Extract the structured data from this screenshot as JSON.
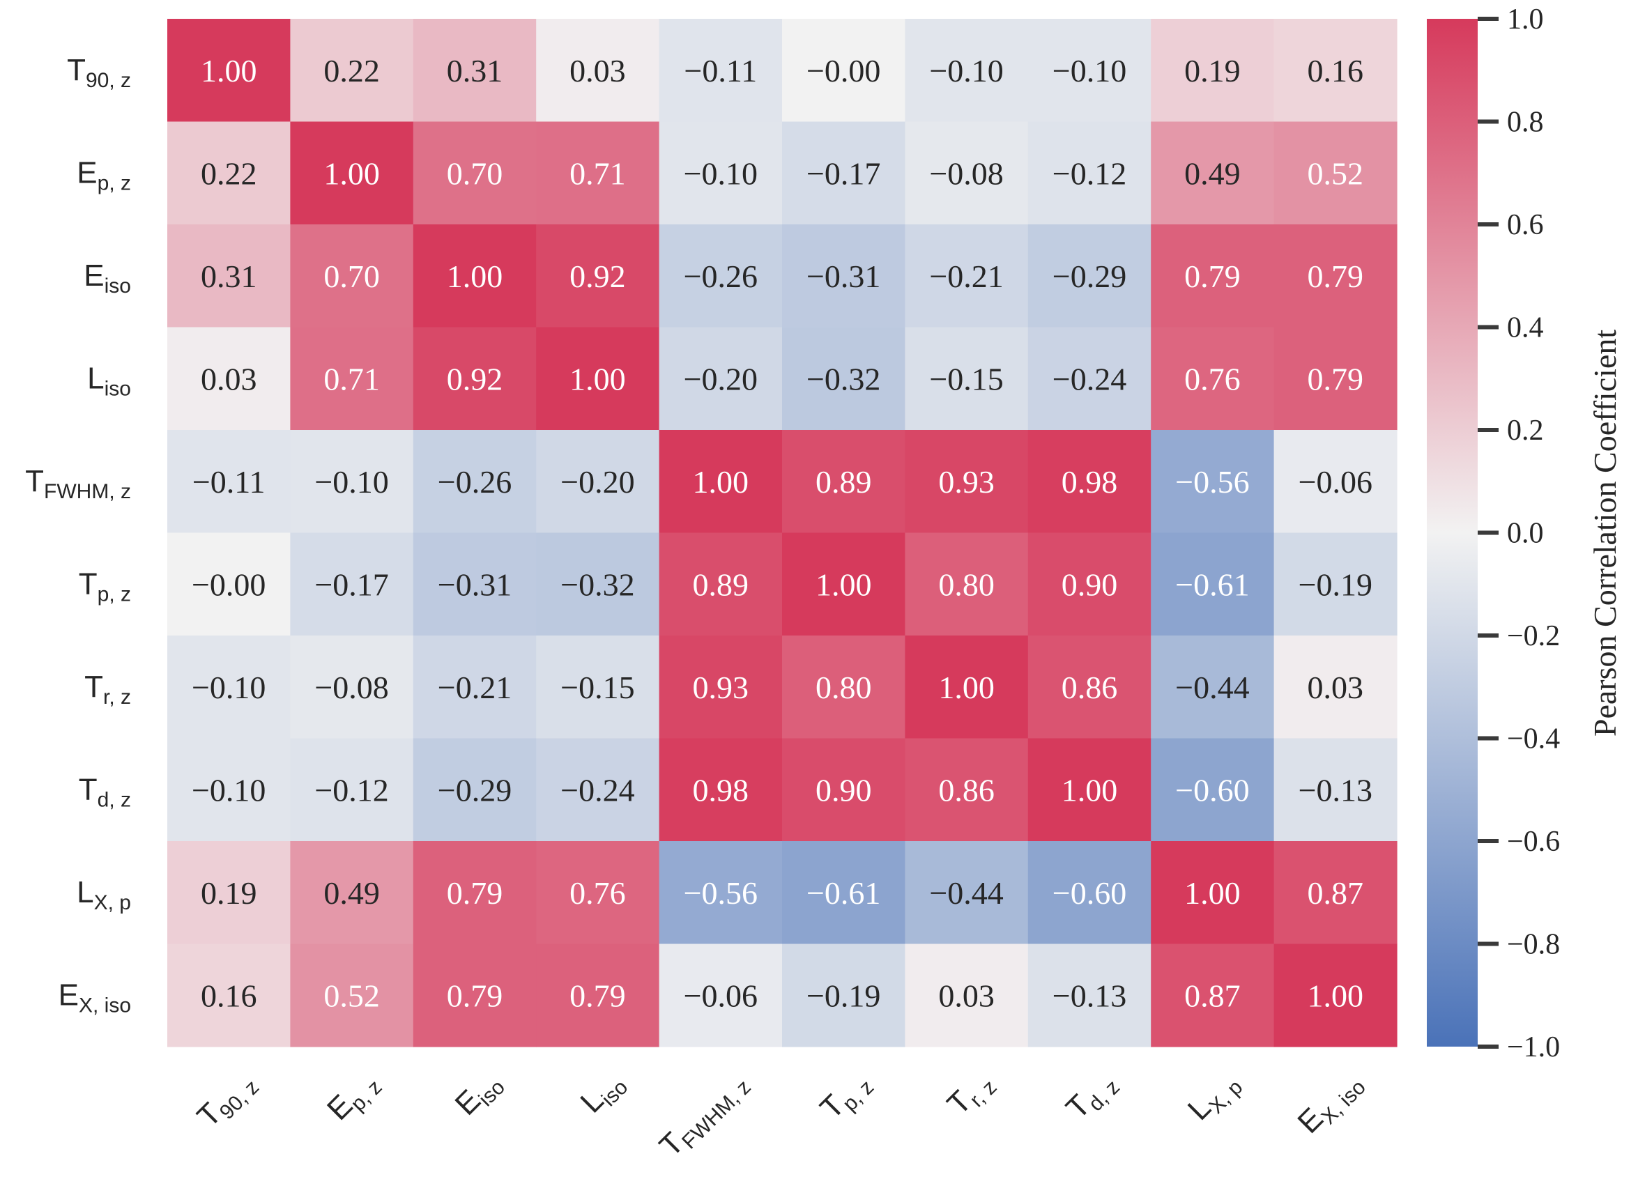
{
  "chart_data": {
    "type": "heatmap",
    "title": "",
    "row_labels": [
      {
        "base": "T",
        "sub": "90, z"
      },
      {
        "base": "E",
        "sub": "p, z"
      },
      {
        "base": "E",
        "sub": "iso"
      },
      {
        "base": "L",
        "sub": "iso"
      },
      {
        "base": "T",
        "sub": "FWHM, z"
      },
      {
        "base": "T",
        "sub": "p, z"
      },
      {
        "base": "T",
        "sub": "r, z"
      },
      {
        "base": "T",
        "sub": "d, z"
      },
      {
        "base": "L",
        "sub": "X, p"
      },
      {
        "base": "E",
        "sub": "X, iso"
      }
    ],
    "col_labels": [
      {
        "base": "T",
        "sub": "90, z"
      },
      {
        "base": "E",
        "sub": "p, z"
      },
      {
        "base": "E",
        "sub": "iso"
      },
      {
        "base": "L",
        "sub": "iso"
      },
      {
        "base": "T",
        "sub": "FWHM, z"
      },
      {
        "base": "T",
        "sub": "p, z"
      },
      {
        "base": "T",
        "sub": "r, z"
      },
      {
        "base": "T",
        "sub": "d, z"
      },
      {
        "base": "L",
        "sub": "X, p"
      },
      {
        "base": "E",
        "sub": "X, iso"
      }
    ],
    "values": [
      [
        1.0,
        0.22,
        0.31,
        0.03,
        -0.11,
        -0.0,
        -0.1,
        -0.1,
        0.19,
        0.16
      ],
      [
        0.22,
        1.0,
        0.7,
        0.71,
        -0.1,
        -0.17,
        -0.08,
        -0.12,
        0.49,
        0.52
      ],
      [
        0.31,
        0.7,
        1.0,
        0.92,
        -0.26,
        -0.31,
        -0.21,
        -0.29,
        0.79,
        0.79
      ],
      [
        0.03,
        0.71,
        0.92,
        1.0,
        -0.2,
        -0.32,
        -0.15,
        -0.24,
        0.76,
        0.79
      ],
      [
        -0.11,
        -0.1,
        -0.26,
        -0.2,
        1.0,
        0.89,
        0.93,
        0.98,
        -0.56,
        -0.06
      ],
      [
        -0.0,
        -0.17,
        -0.31,
        -0.32,
        0.89,
        1.0,
        0.8,
        0.9,
        -0.61,
        -0.19
      ],
      [
        -0.1,
        -0.08,
        -0.21,
        -0.15,
        0.93,
        0.8,
        1.0,
        0.86,
        -0.44,
        0.03
      ],
      [
        -0.1,
        -0.12,
        -0.29,
        -0.24,
        0.98,
        0.9,
        0.86,
        1.0,
        -0.6,
        -0.13
      ],
      [
        0.19,
        0.49,
        0.79,
        0.76,
        -0.56,
        -0.61,
        -0.44,
        -0.6,
        1.0,
        0.87
      ],
      [
        0.16,
        0.52,
        0.79,
        0.79,
        -0.06,
        -0.19,
        0.03,
        -0.13,
        0.87,
        1.0
      ]
    ],
    "value_labels": [
      [
        "1.00",
        "0.22",
        "0.31",
        "0.03",
        "−0.11",
        "−0.00",
        "−0.10",
        "−0.10",
        "0.19",
        "0.16"
      ],
      [
        "0.22",
        "1.00",
        "0.70",
        "0.71",
        "−0.10",
        "−0.17",
        "−0.08",
        "−0.12",
        "0.49",
        "0.52"
      ],
      [
        "0.31",
        "0.70",
        "1.00",
        "0.92",
        "−0.26",
        "−0.31",
        "−0.21",
        "−0.29",
        "0.79",
        "0.79"
      ],
      [
        "0.03",
        "0.71",
        "0.92",
        "1.00",
        "−0.20",
        "−0.32",
        "−0.15",
        "−0.24",
        "0.76",
        "0.79"
      ],
      [
        "−0.11",
        "−0.10",
        "−0.26",
        "−0.20",
        "1.00",
        "0.89",
        "0.93",
        "0.98",
        "−0.56",
        "−0.06"
      ],
      [
        "−0.00",
        "−0.17",
        "−0.31",
        "−0.32",
        "0.89",
        "1.00",
        "0.80",
        "0.90",
        "−0.61",
        "−0.19"
      ],
      [
        "−0.10",
        "−0.08",
        "−0.21",
        "−0.15",
        "0.93",
        "0.80",
        "1.00",
        "0.86",
        "−0.44",
        "0.03"
      ],
      [
        "−0.10",
        "−0.12",
        "−0.29",
        "−0.24",
        "0.98",
        "0.90",
        "0.86",
        "1.00",
        "−0.60",
        "−0.13"
      ],
      [
        "0.19",
        "0.49",
        "0.79",
        "0.76",
        "−0.56",
        "−0.61",
        "−0.44",
        "−0.60",
        "1.00",
        "0.87"
      ],
      [
        "0.16",
        "0.52",
        "0.79",
        "0.79",
        "−0.06",
        "−0.19",
        "0.03",
        "−0.13",
        "0.87",
        "1.00"
      ]
    ],
    "colorbar": {
      "label": "Pearson Correlation Coefficient",
      "range": [
        -1.0,
        1.0
      ],
      "ticks": [
        1.0,
        0.8,
        0.6,
        0.4,
        0.2,
        0.0,
        -0.2,
        -0.4,
        -0.6,
        -0.8,
        -1.0
      ],
      "tick_labels": [
        "1.0",
        "0.8",
        "0.6",
        "0.4",
        "0.2",
        "0.0",
        "−0.2",
        "−0.4",
        "−0.6",
        "−0.8",
        "−1.0"
      ],
      "colors": {
        "low": "#4a72b8",
        "mid": "#f2f2f2",
        "high": "#d63a5c"
      }
    }
  }
}
